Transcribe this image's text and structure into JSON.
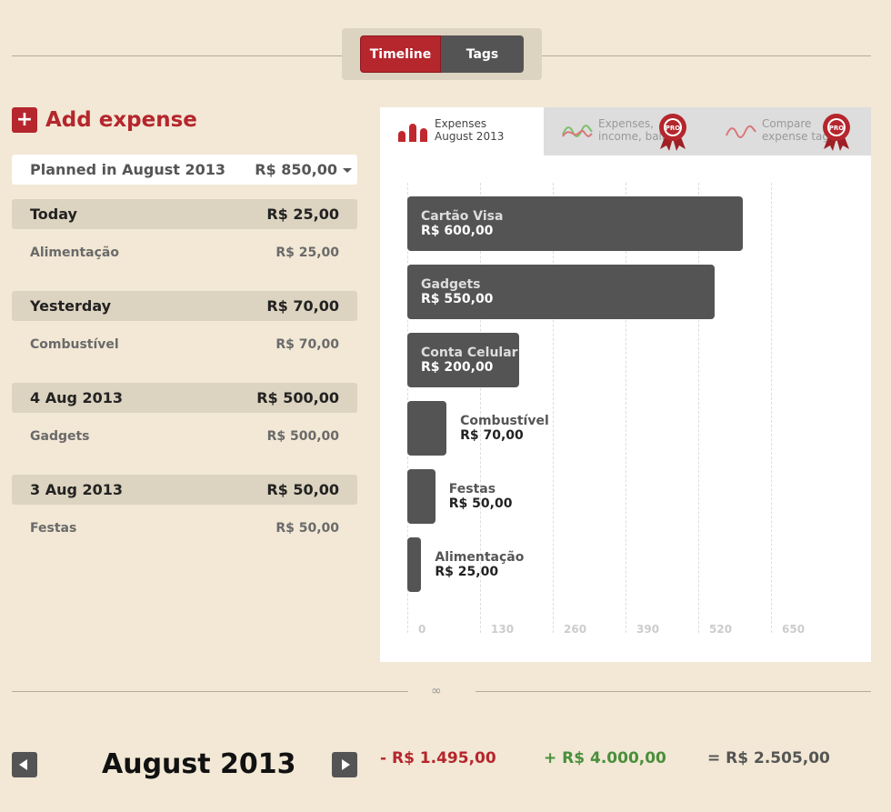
{
  "view_toggle": {
    "timeline": "Timeline",
    "tags": "Tags"
  },
  "add_expense": {
    "icon": "+",
    "label": "Add expense"
  },
  "planned": {
    "label": "Planned in August 2013",
    "value": "R$ 850,00"
  },
  "timeline": [
    {
      "date": "Today",
      "total": "R$ 25,00",
      "items": [
        {
          "name": "Alimentação",
          "value": "R$ 25,00"
        }
      ]
    },
    {
      "date": "Yesterday",
      "total": "R$ 70,00",
      "items": [
        {
          "name": "Combustível",
          "value": "R$ 70,00"
        }
      ]
    },
    {
      "date": "4 Aug 2013",
      "total": "R$ 500,00",
      "items": [
        {
          "name": "Gadgets",
          "value": "R$ 500,00"
        }
      ]
    },
    {
      "date": "3 Aug 2013",
      "total": "R$ 50,00",
      "items": [
        {
          "name": "Festas",
          "value": "R$ 50,00"
        }
      ]
    }
  ],
  "chart_tabs": [
    {
      "line1": "Expenses",
      "line2": "August 2013",
      "active": true
    },
    {
      "line1": "Expenses,",
      "line2": "income, bala",
      "pro": true
    },
    {
      "line1": "Compare",
      "line2": "expense tags",
      "pro": true
    }
  ],
  "pro_badge": "PRO",
  "chart_data": {
    "type": "bar",
    "orientation": "horizontal",
    "categories": [
      "Cartão Visa",
      "Gadgets",
      "Conta Celular",
      "Combustível",
      "Festas",
      "Alimentação"
    ],
    "values": [
      600,
      550,
      200,
      70,
      50,
      25
    ],
    "value_labels": [
      "R$ 600,00",
      "R$ 550,00",
      "R$ 200,00",
      "R$ 70,00",
      "R$ 50,00",
      "R$ 25,00"
    ],
    "ticks": [
      0,
      130,
      260,
      390,
      520,
      650
    ],
    "xlim": [
      0,
      650
    ],
    "grid": true,
    "bar_color": "#545454"
  },
  "footer": {
    "month": "August 2013",
    "expenses": "- R$ 1.495,00",
    "income": "+ R$ 4.000,00",
    "balance": "= R$ 2.505,00"
  },
  "colors": {
    "accent": "#b5262d",
    "income": "#4a8f3c",
    "background": "#f2e8d5",
    "dark": "#545454"
  }
}
